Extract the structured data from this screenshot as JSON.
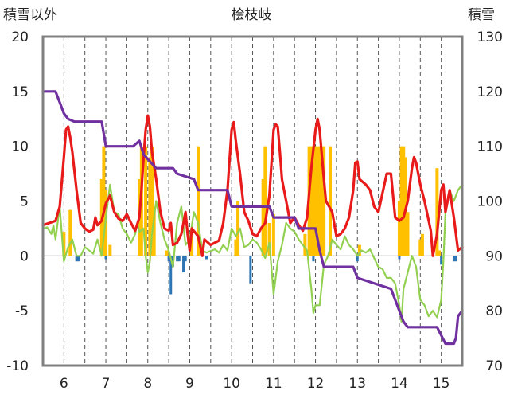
{
  "chart_data": {
    "type": "line",
    "title": "桧枝岐",
    "ylabel_left": "積雪以外",
    "ylabel_right": "積雪",
    "x_ticks": [
      "6",
      "7",
      "8",
      "9",
      "10",
      "11",
      "12",
      "13",
      "14",
      "15"
    ],
    "xlim": [
      5.5,
      15.5
    ],
    "ylim_left": [
      -10,
      20
    ],
    "ylim_right": [
      70,
      130
    ],
    "yticks_left": [
      "20",
      "15",
      "10",
      "5",
      "0",
      "-5",
      "-10"
    ],
    "yticks_right": [
      "130",
      "120",
      "110",
      "100",
      "90",
      "80",
      "70"
    ],
    "grid": {
      "vertical_dashed": true,
      "horizontal": false
    },
    "colors": {
      "temperature": "#e81a1a",
      "green_series": "#92d050",
      "snow_depth": "#7030a0",
      "precip_bar": "#ffc000",
      "neg_bar": "#2e75b6",
      "frame": "#808080"
    },
    "series": [
      {
        "axis": "left",
        "color": "#e81a1a",
        "points": [
          [
            5.5,
            2.8
          ],
          [
            5.65,
            3
          ],
          [
            5.8,
            3.2
          ],
          [
            5.9,
            4.5
          ],
          [
            6.0,
            9
          ],
          [
            6.05,
            11.5
          ],
          [
            6.1,
            11.8
          ],
          [
            6.15,
            10.8
          ],
          [
            6.2,
            9.5
          ],
          [
            6.3,
            6
          ],
          [
            6.4,
            3
          ],
          [
            6.5,
            2.5
          ],
          [
            6.6,
            2.2
          ],
          [
            6.7,
            2.4
          ],
          [
            6.75,
            3.5
          ],
          [
            6.8,
            2.8
          ],
          [
            6.9,
            3.2
          ],
          [
            7.0,
            4.8
          ],
          [
            7.1,
            5.5
          ],
          [
            7.2,
            4
          ],
          [
            7.3,
            3.4
          ],
          [
            7.4,
            3.2
          ],
          [
            7.5,
            3.8
          ],
          [
            7.6,
            3
          ],
          [
            7.7,
            2.3
          ],
          [
            7.8,
            3.5
          ],
          [
            7.85,
            6
          ],
          [
            7.9,
            9
          ],
          [
            7.95,
            11.5
          ],
          [
            8.0,
            12.8
          ],
          [
            8.05,
            11.8
          ],
          [
            8.1,
            9.5
          ],
          [
            8.2,
            7
          ],
          [
            8.3,
            4
          ],
          [
            8.4,
            2.5
          ],
          [
            8.5,
            2.3
          ],
          [
            8.55,
            3
          ],
          [
            8.6,
            1
          ],
          [
            8.7,
            1.2
          ],
          [
            8.8,
            2
          ],
          [
            8.9,
            4
          ],
          [
            8.95,
            2
          ],
          [
            9.0,
            0.5
          ],
          [
            9.05,
            2.5
          ],
          [
            9.2,
            1.8
          ],
          [
            9.3,
            0
          ],
          [
            9.35,
            1.5
          ],
          [
            9.5,
            1
          ],
          [
            9.7,
            1.4
          ],
          [
            9.8,
            3
          ],
          [
            9.9,
            6
          ],
          [
            10.0,
            11.5
          ],
          [
            10.05,
            12.2
          ],
          [
            10.1,
            10.5
          ],
          [
            10.2,
            7.5
          ],
          [
            10.3,
            4
          ],
          [
            10.4,
            3.2
          ],
          [
            10.5,
            2
          ],
          [
            10.6,
            1.8
          ],
          [
            10.7,
            2.5
          ],
          [
            10.8,
            3
          ],
          [
            10.9,
            5.5
          ],
          [
            11.0,
            11.5
          ],
          [
            11.05,
            12
          ],
          [
            11.1,
            11.8
          ],
          [
            11.15,
            9.5
          ],
          [
            11.2,
            7
          ],
          [
            11.3,
            5
          ],
          [
            11.4,
            3
          ],
          [
            11.5,
            3.5
          ],
          [
            11.6,
            2.8
          ],
          [
            11.7,
            2.3
          ],
          [
            11.8,
            3.5
          ],
          [
            11.9,
            8
          ],
          [
            12.0,
            11.5
          ],
          [
            12.05,
            12.5
          ],
          [
            12.1,
            11.5
          ],
          [
            12.2,
            7
          ],
          [
            12.25,
            5
          ],
          [
            12.4,
            4
          ],
          [
            12.5,
            1.8
          ],
          [
            12.6,
            2
          ],
          [
            12.7,
            2.5
          ],
          [
            12.8,
            3.5
          ],
          [
            12.9,
            6
          ],
          [
            12.95,
            8.5
          ],
          [
            13.0,
            8.6
          ],
          [
            13.05,
            7
          ],
          [
            13.2,
            6.5
          ],
          [
            13.3,
            6
          ],
          [
            13.4,
            4.5
          ],
          [
            13.5,
            4
          ],
          [
            13.7,
            7.5
          ],
          [
            13.8,
            7.5
          ],
          [
            13.9,
            3.5
          ],
          [
            14.0,
            3.2
          ],
          [
            14.1,
            3.5
          ],
          [
            14.2,
            5
          ],
          [
            14.3,
            8
          ],
          [
            14.35,
            9
          ],
          [
            14.4,
            8.5
          ],
          [
            14.5,
            6.5
          ],
          [
            14.6,
            5
          ],
          [
            14.75,
            2.3
          ],
          [
            14.8,
            0
          ],
          [
            14.9,
            2
          ],
          [
            15.0,
            6
          ],
          [
            15.05,
            6.5
          ],
          [
            15.1,
            4
          ],
          [
            15.2,
            6
          ],
          [
            15.3,
            3.5
          ],
          [
            15.4,
            0.5
          ],
          [
            15.5,
            0.8
          ]
        ]
      },
      {
        "axis": "left",
        "color": "#92d050",
        "points": [
          [
            5.5,
            2.5
          ],
          [
            5.6,
            2.6
          ],
          [
            5.7,
            2
          ],
          [
            5.75,
            2.8
          ],
          [
            5.8,
            1.5
          ],
          [
            5.9,
            4.5
          ],
          [
            6.0,
            -0.5
          ],
          [
            6.1,
            0.8
          ],
          [
            6.2,
            1.5
          ],
          [
            6.3,
            0
          ],
          [
            6.4,
            0
          ],
          [
            6.5,
            0.8
          ],
          [
            6.6,
            0.5
          ],
          [
            6.7,
            0.2
          ],
          [
            6.8,
            1.5
          ],
          [
            6.9,
            0
          ],
          [
            7.0,
            3.5
          ],
          [
            7.1,
            6.5
          ],
          [
            7.2,
            4
          ],
          [
            7.3,
            3.8
          ],
          [
            7.4,
            2.5
          ],
          [
            7.5,
            2
          ],
          [
            7.6,
            1.2
          ],
          [
            7.7,
            2
          ],
          [
            7.75,
            3
          ],
          [
            7.8,
            2.2
          ],
          [
            7.9,
            2.5
          ],
          [
            7.95,
            0
          ],
          [
            8.0,
            -1.5
          ],
          [
            8.05,
            -0.5
          ],
          [
            8.1,
            2
          ],
          [
            8.2,
            5
          ],
          [
            8.3,
            3
          ],
          [
            8.4,
            1.5
          ],
          [
            8.5,
            0.5
          ],
          [
            8.6,
            -1
          ],
          [
            8.7,
            3
          ],
          [
            8.8,
            4.5
          ],
          [
            8.9,
            1
          ],
          [
            9.0,
            1.5
          ],
          [
            9.1,
            4
          ],
          [
            9.2,
            3
          ],
          [
            9.3,
            0.5
          ],
          [
            9.4,
            0.3
          ],
          [
            9.6,
            0.6
          ],
          [
            9.7,
            0.3
          ],
          [
            9.8,
            1
          ],
          [
            9.9,
            0.5
          ],
          [
            10.0,
            2.5
          ],
          [
            10.1,
            1.8
          ],
          [
            10.2,
            2.5
          ],
          [
            10.3,
            0.8
          ],
          [
            10.4,
            1
          ],
          [
            10.5,
            1.5
          ],
          [
            10.6,
            1.2
          ],
          [
            10.7,
            0.6
          ],
          [
            10.8,
            -0.2
          ],
          [
            10.9,
            1.2
          ],
          [
            11.0,
            -3.5
          ],
          [
            11.05,
            -2
          ],
          [
            11.1,
            -0.5
          ],
          [
            11.2,
            1
          ],
          [
            11.3,
            3
          ],
          [
            11.4,
            2.5
          ],
          [
            11.5,
            2.2
          ],
          [
            11.6,
            1.5
          ],
          [
            11.7,
            1
          ],
          [
            11.8,
            0.5
          ],
          [
            11.9,
            -3
          ],
          [
            11.95,
            -5.2
          ],
          [
            12.0,
            -4.5
          ],
          [
            12.1,
            -4.5
          ],
          [
            12.2,
            -0.8
          ],
          [
            12.3,
            0
          ],
          [
            12.4,
            1.5
          ],
          [
            12.5,
            1
          ],
          [
            12.6,
            0.6
          ],
          [
            12.7,
            1.8
          ],
          [
            12.8,
            1
          ],
          [
            12.9,
            0.6
          ],
          [
            13.0,
            0
          ],
          [
            13.1,
            0.5
          ],
          [
            13.2,
            0.3
          ],
          [
            13.3,
            0.6
          ],
          [
            13.4,
            -0.2
          ],
          [
            13.5,
            -1
          ],
          [
            13.6,
            -1.2
          ],
          [
            13.7,
            -2
          ],
          [
            13.8,
            -2
          ],
          [
            13.9,
            -2.5
          ],
          [
            14.0,
            -4.5
          ],
          [
            14.05,
            -6
          ],
          [
            14.1,
            -3
          ],
          [
            14.2,
            -1.5
          ],
          [
            14.3,
            0
          ],
          [
            14.4,
            -1
          ],
          [
            14.5,
            -4
          ],
          [
            14.6,
            -4.5
          ],
          [
            14.7,
            -5.5
          ],
          [
            14.8,
            -5
          ],
          [
            14.9,
            -5.6
          ],
          [
            15.0,
            -4
          ],
          [
            15.05,
            -0.5
          ],
          [
            15.1,
            4
          ],
          [
            15.2,
            6
          ],
          [
            15.3,
            5
          ],
          [
            15.4,
            6
          ],
          [
            15.5,
            6.5
          ]
        ]
      },
      {
        "axis": "right",
        "color": "#7030a0",
        "points": [
          [
            5.5,
            120
          ],
          [
            5.8,
            120
          ],
          [
            5.9,
            118
          ],
          [
            6.0,
            116
          ],
          [
            6.1,
            115
          ],
          [
            6.25,
            114.5
          ],
          [
            6.5,
            114.5
          ],
          [
            6.9,
            114.5
          ],
          [
            7.0,
            110
          ],
          [
            7.65,
            110
          ],
          [
            7.8,
            111
          ],
          [
            7.9,
            108.5
          ],
          [
            8.2,
            106
          ],
          [
            8.6,
            106
          ],
          [
            8.7,
            105
          ],
          [
            9.1,
            104
          ],
          [
            9.2,
            102
          ],
          [
            9.9,
            102
          ],
          [
            10.0,
            99
          ],
          [
            10.9,
            99
          ],
          [
            11.0,
            97
          ],
          [
            11.5,
            97
          ],
          [
            11.6,
            95
          ],
          [
            12.0,
            95
          ],
          [
            12.1,
            91
          ],
          [
            12.2,
            88
          ],
          [
            12.9,
            88
          ],
          [
            13.0,
            86
          ],
          [
            13.8,
            84
          ],
          [
            13.9,
            82
          ],
          [
            14.0,
            80
          ],
          [
            14.1,
            78
          ],
          [
            14.2,
            77
          ],
          [
            14.9,
            77
          ],
          [
            15.1,
            74
          ],
          [
            15.3,
            74
          ],
          [
            15.35,
            75
          ],
          [
            15.4,
            79
          ],
          [
            15.5,
            80
          ]
        ]
      }
    ],
    "bars_positive": {
      "axis": "left",
      "color": "#ffc000",
      "bars": [
        [
          6.0,
          2.2
        ],
        [
          6.15,
          4.2
        ],
        [
          6.9,
          7
        ],
        [
          6.95,
          10
        ],
        [
          7.0,
          6
        ],
        [
          7.1,
          1
        ],
        [
          7.8,
          7
        ],
        [
          7.85,
          10
        ],
        [
          7.95,
          10
        ],
        [
          8.05,
          9
        ],
        [
          8.1,
          10
        ],
        [
          8.15,
          4.5
        ],
        [
          8.45,
          0.5
        ],
        [
          9.05,
          2.5
        ],
        [
          9.2,
          10
        ],
        [
          10.1,
          1.5
        ],
        [
          10.15,
          5
        ],
        [
          10.75,
          7
        ],
        [
          10.8,
          10
        ],
        [
          10.9,
          3
        ],
        [
          11.0,
          3.8
        ],
        [
          11.75,
          2
        ],
        [
          11.85,
          10
        ],
        [
          11.9,
          10
        ],
        [
          11.95,
          10
        ],
        [
          12.0,
          10
        ],
        [
          12.05,
          10
        ],
        [
          12.1,
          10
        ],
        [
          12.15,
          10
        ],
        [
          12.2,
          10
        ],
        [
          12.35,
          10
        ],
        [
          13.05,
          1
        ],
        [
          14.0,
          5
        ],
        [
          14.05,
          10
        ],
        [
          14.1,
          10
        ],
        [
          14.15,
          9
        ],
        [
          14.2,
          4
        ],
        [
          14.5,
          1.5
        ],
        [
          14.55,
          2
        ],
        [
          14.9,
          8
        ],
        [
          14.95,
          0.5
        ]
      ]
    },
    "bars_negative": {
      "axis": "left",
      "color": "#2e75b6",
      "bars": [
        [
          6.3,
          -0.5
        ],
        [
          6.35,
          -0.5
        ],
        [
          7.0,
          -0.3
        ],
        [
          8.5,
          -0.5
        ],
        [
          8.55,
          -3.5
        ],
        [
          8.6,
          -1
        ],
        [
          8.7,
          -0.5
        ],
        [
          8.75,
          -0.5
        ],
        [
          8.85,
          -1.5
        ],
        [
          8.9,
          -0.5
        ],
        [
          9.4,
          -0.3
        ],
        [
          10.45,
          -2.5
        ],
        [
          11.95,
          -0.5
        ],
        [
          13.0,
          -0.5
        ],
        [
          14.0,
          -0.3
        ],
        [
          15.0,
          -0.8
        ],
        [
          15.3,
          -0.5
        ],
        [
          15.35,
          -0.5
        ]
      ]
    }
  }
}
